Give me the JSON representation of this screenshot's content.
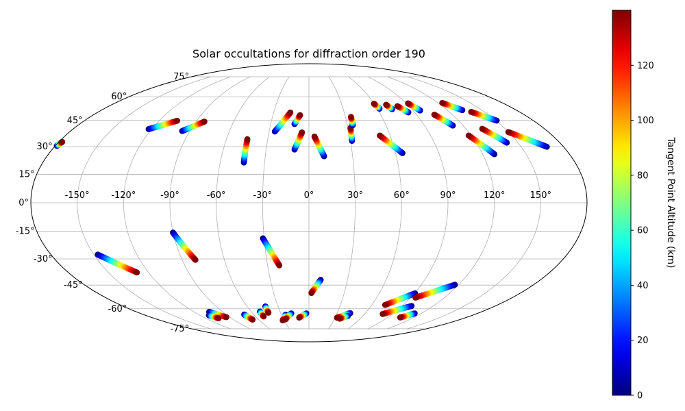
{
  "chart_data": {
    "type": "scatter",
    "projection": "mollweide",
    "title": "Solar occultations for diffraction order 190",
    "x_tick_labels": [
      "-150°",
      "-120°",
      "-90°",
      "-60°",
      "-30°",
      "0°",
      "30°",
      "60°",
      "90°",
      "120°",
      "150°"
    ],
    "y_tick_labels": [
      "-75°",
      "-60°",
      "-45°",
      "-30°",
      "-15°",
      "0°",
      "15°",
      "30°",
      "45°",
      "60°",
      "75°"
    ],
    "longitude_ticks": [
      -150,
      -120,
      -90,
      -60,
      -30,
      0,
      30,
      60,
      90,
      120,
      150
    ],
    "latitude_ticks": [
      -75,
      -60,
      -45,
      -30,
      -15,
      0,
      15,
      30,
      45,
      60,
      75
    ],
    "grid": true,
    "colormap": "jet",
    "colorbar": {
      "label": "Tangent Point Altitude (km)",
      "range": [
        0,
        140
      ],
      "ticks": [
        0,
        20,
        40,
        60,
        80,
        100,
        120
      ],
      "tick_labels": [
        "0",
        "20",
        "40",
        "60",
        "80",
        "100",
        "120"
      ],
      "placement": "right"
    },
    "occultations": [
      {
        "lon_low": -178.8,
        "lat_low": 30.4,
        "lon_high": -177.6,
        "lat_high": 32.6
      },
      {
        "lon_low": -122.3,
        "lat_low": 39.9,
        "lon_high": -105.6,
        "lat_high": 44.8
      },
      {
        "lon_low": -95.8,
        "lat_low": 38.8,
        "lon_high": -83.3,
        "lat_high": 44.3
      },
      {
        "lon_low": -44.0,
        "lat_low": 21.3,
        "lon_high": -44.8,
        "lat_high": 34.1
      },
      {
        "lon_low": -25.7,
        "lat_low": 38.5,
        "lon_high": -15.8,
        "lat_high": 49.8
      },
      {
        "lon_low": -11.3,
        "lat_low": 42.9,
        "lon_high": -7.4,
        "lat_high": 48.2
      },
      {
        "lon_low": -10.1,
        "lat_low": 28.4,
        "lon_high": -5.2,
        "lat_high": 38.0
      },
      {
        "lon_low": 10.4,
        "lat_low": 24.7,
        "lon_high": 4.1,
        "lat_high": 35.6
      },
      {
        "lon_low": 31.1,
        "lat_low": 33.2,
        "lon_high": 31.9,
        "lat_high": 40.6
      },
      {
        "lon_low": 34.2,
        "lat_low": 42.2,
        "lon_high": 34.6,
        "lat_high": 47.1
      },
      {
        "lon_low": 64.8,
        "lat_low": 26.4,
        "lon_high": 52.4,
        "lat_high": 36.2
      },
      {
        "lon_low": 62.0,
        "lat_low": 52.2,
        "lon_high": 60.0,
        "lat_high": 55.4
      },
      {
        "lon_low": 72.8,
        "lat_low": 51.9,
        "lon_high": 70.4,
        "lat_high": 54.7
      },
      {
        "lon_low": 84.7,
        "lat_low": 49.9,
        "lon_high": 79.6,
        "lat_high": 53.8
      },
      {
        "lon_low": 96.2,
        "lat_low": 51.1,
        "lon_high": 91.7,
        "lat_high": 55.6
      },
      {
        "lon_low": 112.0,
        "lat_low": 42.0,
        "lon_high": 104.9,
        "lat_high": 48.5
      },
      {
        "lon_low": 133.1,
        "lat_low": 51.3,
        "lon_high": 124.0,
        "lat_high": 55.9
      },
      {
        "lon_low": 150.6,
        "lat_low": 44.9,
        "lon_high": 138.7,
        "lat_high": 50.2
      },
      {
        "lon_low": 128.1,
        "lat_low": 25.8,
        "lon_high": 118.1,
        "lat_high": 36.2
      },
      {
        "lon_low": 142.0,
        "lat_low": 32.2,
        "lon_high": 132.5,
        "lat_high": 40.1
      },
      {
        "lon_low": 168.2,
        "lat_low": 29.9,
        "lon_high": 149.9,
        "lat_high": 38.2
      },
      {
        "lon_low": -147.3,
        "lat_low": -27.6,
        "lon_high": -128.7,
        "lat_high": -37.6
      },
      {
        "lon_low": -90.1,
        "lat_low": -15.7,
        "lon_high": -80.6,
        "lat_high": -30.5
      },
      {
        "lon_low": -30.8,
        "lat_low": -18.8,
        "lon_high": -21.5,
        "lat_high": -33.6
      },
      {
        "lon_low": 9.1,
        "lat_low": -41.9,
        "lon_high": 2.1,
        "lat_high": -49.8
      },
      {
        "lon_low": -70.4,
        "lat_low": -64.0,
        "lon_high": -67.3,
        "lat_high": -67.7
      },
      {
        "lon_low": -104.1,
        "lat_low": -62.1,
        "lon_high": -94.1,
        "lat_high": -65.9
      },
      {
        "lon_low": -110.1,
        "lat_low": -64.5,
        "lon_high": -105.1,
        "lat_high": -66.7
      },
      {
        "lon_low": -50.9,
        "lat_low": -61.9,
        "lon_high": -50.9,
        "lat_high": -65.4
      },
      {
        "lon_low": -42.3,
        "lat_low": -58.4,
        "lon_high": -42.8,
        "lat_high": -62.7
      },
      {
        "lon_low": -25.4,
        "lat_low": -64.1,
        "lon_high": -31.8,
        "lat_high": -68.3
      },
      {
        "lon_low": -18.9,
        "lat_low": -63.2,
        "lon_high": -27.8,
        "lat_high": -67.5
      },
      {
        "lon_low": -2.8,
        "lat_low": -63.2,
        "lon_high": -11.2,
        "lat_high": -66.2
      },
      {
        "lon_low": 43.9,
        "lat_low": -63.0,
        "lon_high": 32.2,
        "lat_high": -66.3
      },
      {
        "lon_low": 43.3,
        "lat_low": -65.0,
        "lon_high": 36.0,
        "lat_high": -67.0
      },
      {
        "lon_low": 90.5,
        "lat_low": -50.0,
        "lon_high": 72.7,
        "lat_high": -57.4
      },
      {
        "lon_low": 116.9,
        "lat_low": -44.8,
        "lon_high": 94.3,
        "lat_high": -52.7
      },
      {
        "lon_low": 99.1,
        "lat_low": -58.1,
        "lon_high": 79.5,
        "lat_high": -63.6
      },
      {
        "lon_low": 113.0,
        "lat_low": -63.2,
        "lon_high": 104.4,
        "lat_high": -66.1
      }
    ]
  }
}
